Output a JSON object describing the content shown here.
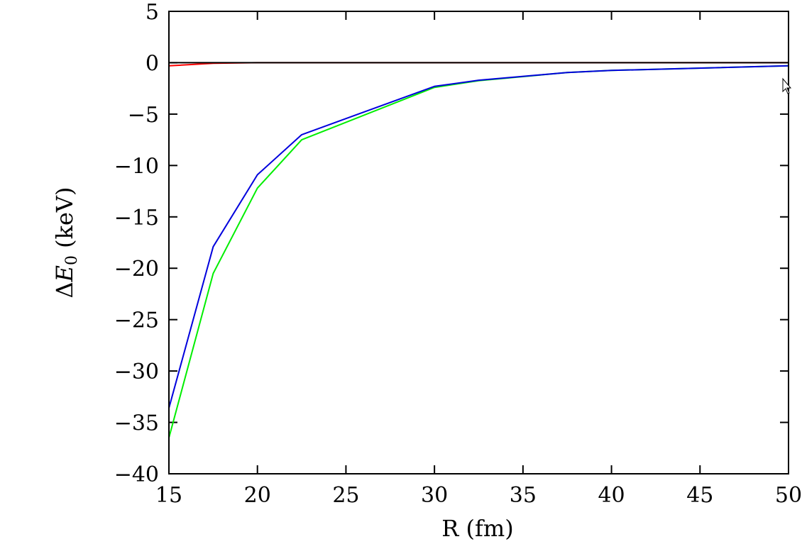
{
  "chart_data": {
    "type": "line",
    "title": "",
    "xlabel": "R (fm)",
    "ylabel_parts": {
      "prefix": "Δ",
      "symbol": "E",
      "subscript": "0",
      "suffix": " (keV)"
    },
    "xlim": [
      15,
      50
    ],
    "ylim": [
      -40,
      5
    ],
    "xticks": [
      15,
      20,
      25,
      30,
      35,
      40,
      45,
      50
    ],
    "yticks": [
      5,
      0,
      -5,
      -10,
      -15,
      -20,
      -25,
      -30,
      -35,
      -40
    ],
    "ytick_labels": [
      "5",
      "0",
      "−5",
      "−10",
      "−15",
      "−20",
      "−25",
      "−30",
      "−35",
      "−40"
    ],
    "grid": false,
    "series": [
      {
        "color": "#ff0000",
        "x": [
          15,
          17.5,
          20,
          22.5,
          25,
          30,
          32.5,
          37.5,
          40,
          50
        ],
        "y": [
          -0.3,
          -0.05,
          0,
          0,
          0,
          0,
          0,
          0,
          0,
          0
        ]
      },
      {
        "color": "#000000",
        "x": [
          15,
          50
        ],
        "y": [
          0,
          0
        ]
      },
      {
        "color": "#00ee00",
        "x": [
          15,
          17.5,
          20,
          22.5,
          30,
          32.5,
          37.5,
          40,
          50
        ],
        "y": [
          -36.5,
          -20.5,
          -12.2,
          -7.5,
          -2.4,
          -1.75,
          -0.95,
          -0.75,
          -0.3
        ]
      },
      {
        "color": "#0000dd",
        "x": [
          15,
          17.5,
          20,
          22.5,
          30,
          32.5,
          37.5,
          40,
          50
        ],
        "y": [
          -33.6,
          -17.9,
          -10.9,
          -7.0,
          -2.3,
          -1.7,
          -0.95,
          -0.75,
          -0.3
        ]
      }
    ]
  }
}
